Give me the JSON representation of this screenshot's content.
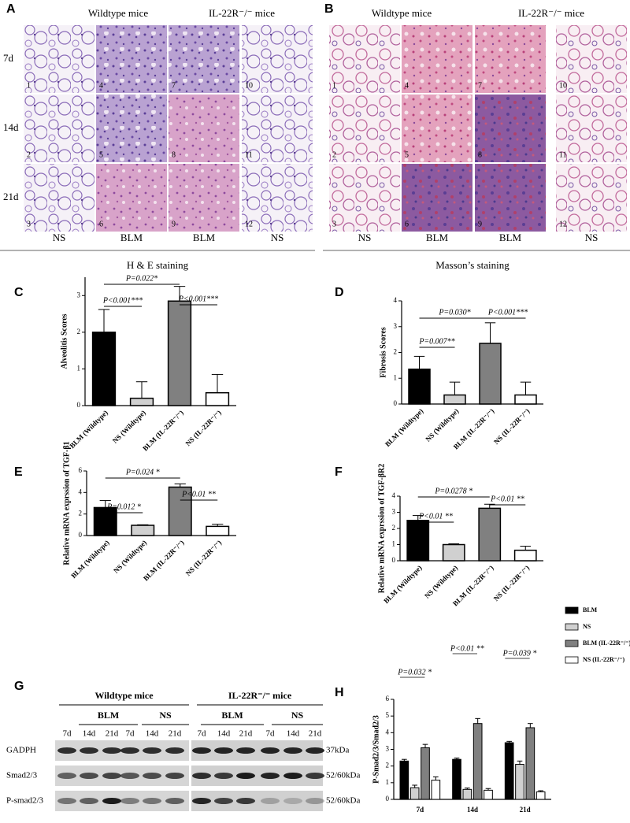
{
  "figures": [
    {
      "panel": "A",
      "groups": [
        "Wildtype mice",
        "IL-22R⁻/⁻ mice"
      ],
      "rows": [
        "7d",
        "14d",
        "21d"
      ],
      "image_labels": [
        "1",
        "2",
        "3",
        "4",
        "5",
        "6",
        "7",
        "8",
        "9",
        "10",
        "11",
        "12"
      ],
      "columns": [
        "NS",
        "BLM",
        "BLM",
        "NS"
      ],
      "caption": "H & E staining"
    },
    {
      "panel": "B",
      "groups": [
        "Wildtype mice",
        "IL-22R⁻/⁻ mice"
      ],
      "image_labels": [
        "1",
        "2",
        "3",
        "4",
        "5",
        "6",
        "7",
        "8",
        "9",
        "10",
        "11",
        "12"
      ],
      "columns": [
        "NS",
        "BLM",
        "BLM",
        "NS"
      ],
      "caption": "Masson’s staining"
    },
    {
      "panel": "G",
      "groups": [
        "Wildtype mice",
        "IL-22R⁻/⁻ mice"
      ],
      "treatments": [
        "BLM",
        "NS",
        "BLM",
        "NS"
      ],
      "lanes": [
        "7d",
        "14d",
        "21d",
        "7d",
        "14d",
        "21d",
        "7d",
        "14d",
        "21d",
        "7d",
        "14d",
        "21d"
      ],
      "rows": [
        "GADPH",
        "Smad2/3",
        "P-smad2/3"
      ],
      "sizes": [
        "37kDa",
        "52/60kDa",
        "52/60kDa"
      ]
    }
  ],
  "chart_data": [
    {
      "type": "bar",
      "panel": "C",
      "ylabel": "Alveolitis Scores",
      "categories": [
        "BLM (Wildtype)",
        "NS (Wildtype)",
        "BLM (IL-22R⁻/⁻)",
        "NS (IL-22R⁻/⁻)"
      ],
      "values": [
        2.0,
        0.2,
        2.85,
        0.35
      ],
      "errors": [
        0.62,
        0.45,
        0.4,
        0.5
      ],
      "colors": [
        "#000000",
        "#d0d0d0",
        "#808080",
        "#ffffff"
      ],
      "ylim": [
        0,
        3.5
      ],
      "yticks": [
        0,
        1,
        2,
        3
      ],
      "annotations": [
        "P<0.001***",
        "P=0.022*",
        "P<0.001***"
      ]
    },
    {
      "type": "bar",
      "panel": "D",
      "ylabel": "Fibrosis Scores",
      "categories": [
        "BLM (Wildtype)",
        "NS (Wildtype)",
        "BLM (IL-22R⁻/⁻)",
        "NS (IL-22R⁻/⁻)"
      ],
      "values": [
        1.35,
        0.35,
        2.35,
        0.35
      ],
      "errors": [
        0.5,
        0.5,
        0.8,
        0.5
      ],
      "colors": [
        "#000000",
        "#d0d0d0",
        "#808080",
        "#ffffff"
      ],
      "ylim": [
        0,
        4
      ],
      "yticks": [
        0,
        1,
        2,
        3,
        4
      ],
      "annotations": [
        "P=0.007**",
        "P=0.030*",
        "P<0.001***"
      ]
    },
    {
      "type": "bar",
      "panel": "E",
      "ylabel": "Relative  mRNA exprssion of  TGF-β1",
      "categories": [
        "BLM (Wildtype)",
        "NS (Wildtype)",
        "BLM (IL-22R⁻/⁻)",
        "NS (IL-22R⁻/⁻)"
      ],
      "values": [
        2.6,
        0.95,
        4.5,
        0.85
      ],
      "errors": [
        0.65,
        0.05,
        0.3,
        0.2
      ],
      "colors": [
        "#000000",
        "#d0d0d0",
        "#808080",
        "#ffffff"
      ],
      "ylim": [
        0,
        6
      ],
      "yticks": [
        0,
        2,
        4,
        6
      ],
      "annotations": [
        "P=0.012 *",
        "P=0.024 *",
        "P<0.01 **"
      ]
    },
    {
      "type": "bar",
      "panel": "F",
      "ylabel": "Relative mRNA exprssion of TGF-βR2",
      "categories": [
        "BLM (Wildtype)",
        "NS (Wildtype)",
        "BLM (IL-22R⁻/⁻)",
        "NS (IL-22R⁻/⁻)"
      ],
      "values": [
        2.5,
        1.0,
        3.25,
        0.65
      ],
      "errors": [
        0.3,
        0.05,
        0.25,
        0.25
      ],
      "colors": [
        "#000000",
        "#d0d0d0",
        "#808080",
        "#ffffff"
      ],
      "ylim": [
        0,
        4
      ],
      "yticks": [
        0,
        1,
        2,
        3,
        4
      ],
      "annotations": [
        "P<0.01 **",
        "P=0.0278 *",
        "P<0.01 **"
      ]
    },
    {
      "type": "grouped_bar",
      "panel": "H",
      "ylabel": "P-Smad2/3/Smad2/3",
      "categories": [
        "7d",
        "14d",
        "21d"
      ],
      "series": [
        {
          "name": "BLM",
          "color": "#000000",
          "values": [
            2.3,
            2.4,
            3.4
          ],
          "errors": [
            0.1,
            0.08,
            0.08
          ]
        },
        {
          "name": "NS",
          "color": "#d0d0d0",
          "values": [
            0.7,
            0.6,
            2.1
          ],
          "errors": [
            0.15,
            0.08,
            0.2
          ]
        },
        {
          "name": "BLM (IL-22R⁻/⁻)",
          "color": "#808080",
          "values": [
            3.1,
            4.55,
            4.3
          ],
          "errors": [
            0.2,
            0.3,
            0.25
          ]
        },
        {
          "name": "NS (IL-22R⁻/⁻)",
          "color": "#ffffff",
          "values": [
            1.15,
            0.55,
            0.45
          ],
          "errors": [
            0.2,
            0.1,
            0.07
          ]
        }
      ],
      "ylim": [
        0,
        6
      ],
      "yticks": [
        0,
        1,
        2,
        3,
        4,
        5,
        6
      ],
      "legend": "upper right",
      "annotations": [
        "P=0.032 *",
        "P<0.01 **",
        "P=0.039 *"
      ]
    }
  ]
}
